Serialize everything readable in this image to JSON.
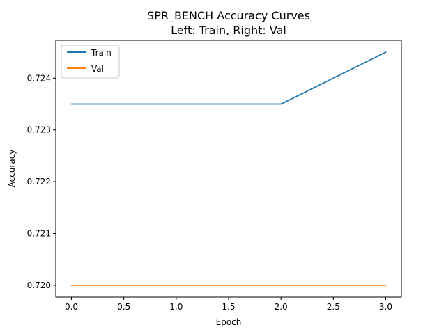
{
  "chart_data": {
    "type": "line",
    "title": "SPR_BENCH Accuracy Curves",
    "subtitle": "Left: Train, Right: Val",
    "xlabel": "Epoch",
    "ylabel": "Accuracy",
    "x": [
      0,
      1,
      2,
      3
    ],
    "xlim": [
      -0.15,
      3.15
    ],
    "ylim": [
      0.71977,
      0.72473
    ],
    "xticks": [
      0.0,
      0.5,
      1.0,
      1.5,
      2.0,
      2.5,
      3.0
    ],
    "xtick_labels": [
      "0.0",
      "0.5",
      "1.0",
      "1.5",
      "2.0",
      "2.5",
      "3.0"
    ],
    "yticks": [
      0.72,
      0.721,
      0.722,
      0.723,
      0.724
    ],
    "ytick_labels": [
      "0.720",
      "0.721",
      "0.722",
      "0.723",
      "0.724"
    ],
    "series": [
      {
        "name": "Train",
        "color": "#1f77b4",
        "values": [
          0.7235,
          0.7235,
          0.7235,
          0.7245
        ]
      },
      {
        "name": "Val",
        "color": "#ff7f0e",
        "values": [
          0.72,
          0.72,
          0.72,
          0.72
        ]
      }
    ],
    "legend_position": "top-left",
    "grid": false
  }
}
